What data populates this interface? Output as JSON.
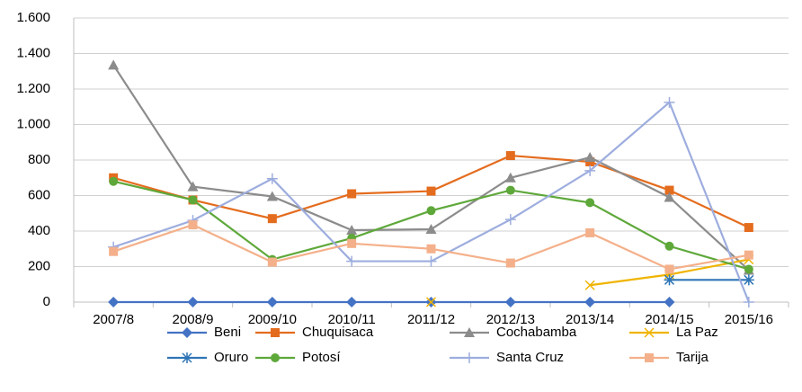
{
  "chart_data": {
    "type": "line",
    "categories": [
      "2007/8",
      "2008/9",
      "2009/10",
      "2010/11",
      "2011/12",
      "2012/13",
      "2013/14",
      "2014/15",
      "2015/16"
    ],
    "ylim": [
      0,
      1600
    ],
    "yticks": [
      0,
      200,
      400,
      600,
      800,
      {
        "value": 1000,
        "label": "1.000"
      },
      {
        "value": 1200,
        "label": "1.200"
      },
      {
        "value": 1400,
        "label": "1.400"
      },
      {
        "value": 1600,
        "label": "1.600"
      }
    ],
    "grid": true,
    "legend": "bottom",
    "series": [
      {
        "name": "Beni",
        "color": "#4472c4",
        "marker": "diamond",
        "values": [
          0,
          0,
          0,
          0,
          0,
          0,
          0,
          0,
          null
        ]
      },
      {
        "name": "Chuquisaca",
        "color": "#e46c1e",
        "marker": "square",
        "values": [
          700,
          575,
          470,
          610,
          625,
          825,
          790,
          630,
          420
        ]
      },
      {
        "name": "Cochabamba",
        "color": "#8c8c8c",
        "marker": "triangle",
        "values": [
          1335,
          650,
          595,
          405,
          410,
          700,
          815,
          590,
          180
        ]
      },
      {
        "name": "La Paz",
        "color": "#f0b400",
        "marker": "x",
        "values": [
          null,
          null,
          null,
          null,
          0,
          null,
          95,
          155,
          240
        ]
      },
      {
        "name": "Oruro",
        "color": "#2e75b6",
        "marker": "star",
        "values": [
          null,
          null,
          null,
          null,
          null,
          null,
          null,
          125,
          125
        ]
      },
      {
        "name": "Potosí",
        "color": "#5ea83a",
        "marker": "circle",
        "values": [
          680,
          575,
          240,
          360,
          515,
          630,
          560,
          315,
          185
        ]
      },
      {
        "name": "Santa Cruz",
        "color": "#9dadde",
        "marker": "plus",
        "values": [
          310,
          460,
          695,
          230,
          230,
          465,
          740,
          1125,
          0
        ]
      },
      {
        "name": "Tarija",
        "color": "#f4b08a",
        "marker": "square",
        "values": [
          285,
          435,
          225,
          330,
          300,
          220,
          390,
          185,
          265
        ]
      }
    ]
  }
}
